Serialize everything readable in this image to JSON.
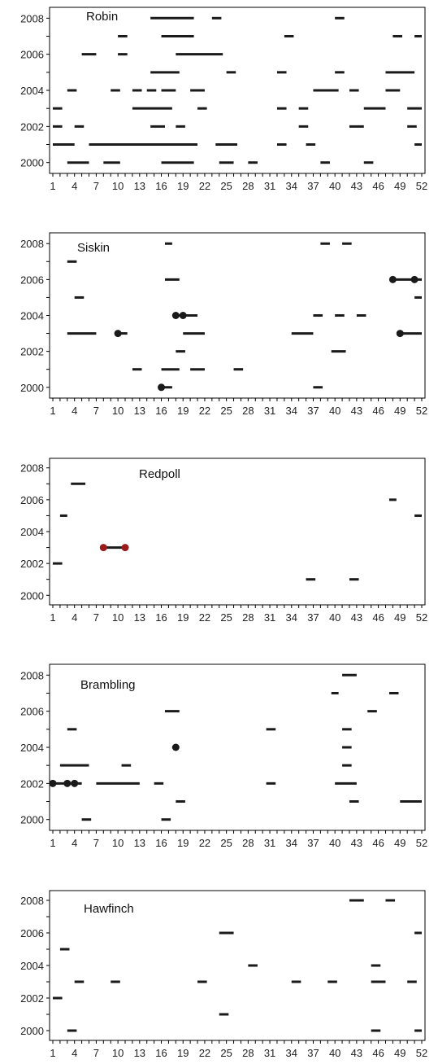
{
  "colors": {
    "bar": "#1a1a1a",
    "axis": "#000000",
    "highlight": "#9b1b1b"
  },
  "chart_data": [
    {
      "type": "scatter",
      "title": "Robin",
      "xlim": [
        1,
        52
      ],
      "ylim": [
        1999.4,
        2008.6
      ],
      "xticks": [
        "1",
        "4",
        "7",
        "10",
        "13",
        "16",
        "19",
        "22",
        "25",
        "28",
        "31",
        "34",
        "37",
        "40",
        "43",
        "46",
        "49",
        "52"
      ],
      "yticks": [
        "2000",
        "2002",
        "2004",
        "2006",
        "2008"
      ],
      "segments": [
        [
          14.5,
          20.5,
          2008
        ],
        [
          23,
          24.3,
          2008
        ],
        [
          40,
          41.3,
          2008
        ],
        [
          10,
          11.3,
          2007
        ],
        [
          16,
          20.5,
          2007
        ],
        [
          33,
          34.3,
          2007
        ],
        [
          48,
          49.3,
          2007
        ],
        [
          51,
          52,
          2007
        ],
        [
          5,
          7,
          2006
        ],
        [
          10,
          11.3,
          2006
        ],
        [
          18,
          24.5,
          2006
        ],
        [
          14.5,
          18.5,
          2005
        ],
        [
          25,
          26.3,
          2005
        ],
        [
          32,
          33.3,
          2005
        ],
        [
          40,
          41.3,
          2005
        ],
        [
          47,
          51,
          2005
        ],
        [
          3,
          4.3,
          2004
        ],
        [
          9,
          10.3,
          2004
        ],
        [
          12,
          13.3,
          2004
        ],
        [
          14,
          15.3,
          2004
        ],
        [
          16,
          18,
          2004
        ],
        [
          20,
          22,
          2004
        ],
        [
          37,
          40.5,
          2004
        ],
        [
          42,
          43.3,
          2004
        ],
        [
          47,
          49,
          2004
        ],
        [
          1,
          2.3,
          2003
        ],
        [
          12,
          17.5,
          2003
        ],
        [
          21,
          22.3,
          2003
        ],
        [
          32,
          33.3,
          2003
        ],
        [
          35,
          36.3,
          2003
        ],
        [
          44,
          47,
          2003
        ],
        [
          50,
          52,
          2003
        ],
        [
          1,
          2.3,
          2002
        ],
        [
          4,
          5.3,
          2002
        ],
        [
          14.5,
          16.5,
          2002
        ],
        [
          18,
          19.3,
          2002
        ],
        [
          35,
          36.3,
          2002
        ],
        [
          42,
          44,
          2002
        ],
        [
          50,
          51.3,
          2002
        ],
        [
          1,
          4,
          2001
        ],
        [
          6,
          21,
          2001
        ],
        [
          23.5,
          26.5,
          2001
        ],
        [
          32,
          33.3,
          2001
        ],
        [
          36,
          37.3,
          2001
        ],
        [
          51,
          52,
          2001
        ],
        [
          3,
          6,
          2000
        ],
        [
          8,
          10.3,
          2000
        ],
        [
          16,
          20.5,
          2000
        ],
        [
          24,
          26,
          2000
        ],
        [
          28,
          29.3,
          2000
        ],
        [
          38,
          39.3,
          2000
        ],
        [
          44,
          45.3,
          2000
        ]
      ],
      "points": []
    },
    {
      "type": "scatter",
      "title": "Siskin",
      "xlim": [
        1,
        52
      ],
      "ylim": [
        1999.4,
        2008.6
      ],
      "xticks": [
        "1",
        "4",
        "7",
        "10",
        "13",
        "16",
        "19",
        "22",
        "25",
        "28",
        "31",
        "34",
        "37",
        "40",
        "43",
        "46",
        "49",
        "52"
      ],
      "yticks": [
        "2000",
        "2002",
        "2004",
        "2006",
        "2008"
      ],
      "segments": [
        [
          16.5,
          17.5,
          2008
        ],
        [
          38,
          39.3,
          2008
        ],
        [
          41,
          42.3,
          2008
        ],
        [
          3,
          4.3,
          2007
        ],
        [
          16.5,
          18.5,
          2006
        ],
        [
          48,
          52,
          2006
        ],
        [
          4,
          5.3,
          2005
        ],
        [
          51,
          52,
          2005
        ],
        [
          18,
          21,
          2004
        ],
        [
          37,
          38.3,
          2004
        ],
        [
          40,
          41.3,
          2004
        ],
        [
          43,
          44.3,
          2004
        ],
        [
          3,
          7,
          2003
        ],
        [
          10,
          11.3,
          2003
        ],
        [
          19,
          22,
          2003
        ],
        [
          34,
          37,
          2003
        ],
        [
          49,
          52,
          2003
        ],
        [
          18,
          19.3,
          2002
        ],
        [
          39.5,
          41.5,
          2002
        ],
        [
          12,
          13.3,
          2001
        ],
        [
          16,
          18.5,
          2001
        ],
        [
          20,
          22,
          2001
        ],
        [
          26,
          27.3,
          2001
        ],
        [
          16,
          17.5,
          2000
        ],
        [
          37,
          38.3,
          2000
        ]
      ],
      "points": [
        [
          48,
          2006
        ],
        [
          51,
          2006
        ],
        [
          18,
          2004
        ],
        [
          19,
          2004
        ],
        [
          10,
          2003
        ],
        [
          49,
          2003
        ],
        [
          16,
          2000
        ]
      ]
    },
    {
      "type": "scatter",
      "title": "Redpoll",
      "xlim": [
        1,
        52
      ],
      "ylim": [
        1999.4,
        2008.6
      ],
      "xticks": [
        "1",
        "4",
        "7",
        "10",
        "13",
        "16",
        "19",
        "22",
        "25",
        "28",
        "31",
        "34",
        "37",
        "40",
        "43",
        "46",
        "49",
        "52"
      ],
      "yticks": [
        "2000",
        "2002",
        "2004",
        "2006",
        "2008"
      ],
      "segments": [
        [
          3.5,
          5.5,
          2007
        ],
        [
          47.5,
          48.5,
          2006
        ],
        [
          2,
          3,
          2005
        ],
        [
          51,
          52,
          2005
        ],
        [
          8,
          11,
          2003
        ],
        [
          1,
          2.3,
          2002
        ],
        [
          36,
          37.3,
          2001
        ],
        [
          42,
          43.3,
          2001
        ]
      ],
      "points": [],
      "highlight_points": [
        [
          8,
          2003
        ],
        [
          11,
          2003
        ]
      ]
    },
    {
      "type": "scatter",
      "title": "Brambling",
      "xlim": [
        1,
        52
      ],
      "ylim": [
        1999.4,
        2008.6
      ],
      "xticks": [
        "1",
        "4",
        "7",
        "10",
        "13",
        "16",
        "19",
        "22",
        "25",
        "28",
        "31",
        "34",
        "37",
        "40",
        "43",
        "46",
        "49",
        "52"
      ],
      "yticks": [
        "2000",
        "2002",
        "2004",
        "2006",
        "2008"
      ],
      "segments": [
        [
          41,
          43,
          2008
        ],
        [
          39.5,
          40.5,
          2007
        ],
        [
          47.5,
          48.8,
          2007
        ],
        [
          16.5,
          18.5,
          2006
        ],
        [
          44.5,
          45.8,
          2006
        ],
        [
          3,
          4.3,
          2005
        ],
        [
          30.5,
          31.8,
          2005
        ],
        [
          41,
          42.3,
          2005
        ],
        [
          17.5,
          18,
          2004
        ],
        [
          41,
          42.3,
          2004
        ],
        [
          2,
          6,
          2003
        ],
        [
          10.5,
          11.8,
          2003
        ],
        [
          41,
          42.3,
          2003
        ],
        [
          1,
          5,
          2002
        ],
        [
          7,
          13,
          2002
        ],
        [
          15,
          16.3,
          2002
        ],
        [
          30.5,
          31.8,
          2002
        ],
        [
          40,
          43,
          2002
        ],
        [
          18,
          19.3,
          2001
        ],
        [
          42,
          43.3,
          2001
        ],
        [
          49,
          52,
          2001
        ],
        [
          5,
          6.3,
          2000
        ],
        [
          16,
          17.3,
          2000
        ]
      ],
      "points": [
        [
          1,
          2002
        ],
        [
          3,
          2002
        ],
        [
          4,
          2002
        ],
        [
          18,
          2004
        ]
      ]
    },
    {
      "type": "scatter",
      "title": "Hawfinch",
      "xlim": [
        1,
        52
      ],
      "ylim": [
        1999.4,
        2008.6
      ],
      "xticks": [
        "1",
        "4",
        "7",
        "10",
        "13",
        "16",
        "19",
        "22",
        "25",
        "28",
        "31",
        "34",
        "37",
        "40",
        "43",
        "46",
        "49",
        "52"
      ],
      "yticks": [
        "2000",
        "2002",
        "2004",
        "2006",
        "2008"
      ],
      "segments": [
        [
          42,
          44,
          2008
        ],
        [
          47,
          48.3,
          2008
        ],
        [
          24,
          26,
          2006
        ],
        [
          51,
          52,
          2006
        ],
        [
          2,
          3.3,
          2005
        ],
        [
          28,
          29.3,
          2004
        ],
        [
          45,
          46.3,
          2004
        ],
        [
          4,
          5.3,
          2003
        ],
        [
          9,
          10.3,
          2003
        ],
        [
          21,
          22.3,
          2003
        ],
        [
          34,
          35.3,
          2003
        ],
        [
          39,
          40.3,
          2003
        ],
        [
          45,
          47,
          2003
        ],
        [
          50,
          51.3,
          2003
        ],
        [
          1,
          2.3,
          2002
        ],
        [
          24,
          25.3,
          2001
        ],
        [
          3,
          4.3,
          2000
        ],
        [
          45,
          46.3,
          2000
        ],
        [
          51,
          52,
          2000
        ]
      ],
      "points": []
    }
  ]
}
